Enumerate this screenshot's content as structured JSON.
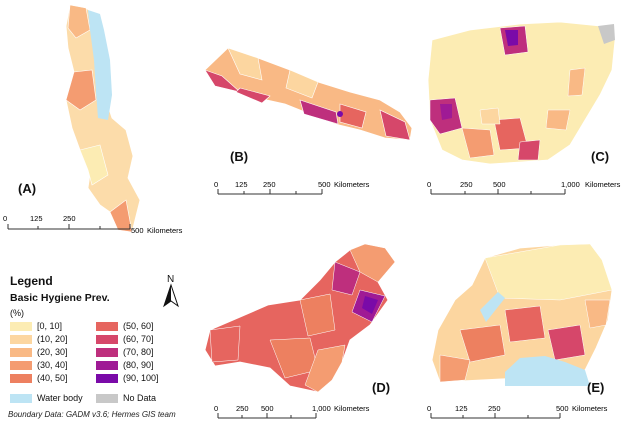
{
  "panels": [
    {
      "id": "A",
      "label": "(A)",
      "scale": {
        "ticks": [
          "0",
          "125",
          "250",
          "500"
        ],
        "unit": "Kilometers"
      }
    },
    {
      "id": "B",
      "label": "(B)",
      "scale": {
        "ticks": [
          "0",
          "125",
          "250",
          "500"
        ],
        "unit": "Kilometers"
      }
    },
    {
      "id": "C",
      "label": "(C)",
      "scale": {
        "ticks": [
          "0",
          "250",
          "500",
          "1,000"
        ],
        "unit": "Kilometers"
      }
    },
    {
      "id": "D",
      "label": "(D)",
      "scale": {
        "ticks": [
          "0",
          "250",
          "500",
          "1,000"
        ],
        "unit": "Kilometers"
      }
    },
    {
      "id": "E",
      "label": "(E)",
      "scale": {
        "ticks": [
          "0",
          "125",
          "250",
          "500"
        ],
        "unit": "Kilometers"
      }
    }
  ],
  "legend": {
    "title": "Legend",
    "subtitle": "Basic Hygiene Prev.",
    "unit": "(%)",
    "classes": [
      {
        "label": "[0, 10]",
        "color": "#fcecb3"
      },
      {
        "label": "(10, 20]",
        "color": "#fcd6a0"
      },
      {
        "label": "(20, 30]",
        "color": "#f9b985"
      },
      {
        "label": "(30, 40]",
        "color": "#f49c71"
      },
      {
        "label": "(40, 50]",
        "color": "#ed8060"
      },
      {
        "label": "(50, 60]",
        "color": "#e6655f"
      },
      {
        "label": "(60, 70]",
        "color": "#d6476a"
      },
      {
        "label": "(70, 80]",
        "color": "#be2f7d"
      },
      {
        "label": "(80, 90]",
        "color": "#9f1a95"
      },
      {
        "label": "(90, 100]",
        "color": "#7a0aa8"
      }
    ],
    "extras": [
      {
        "label": "Water body",
        "color": "#bde4f4"
      },
      {
        "label": "No Data",
        "color": "#c8c8c8"
      }
    ]
  },
  "north_arrow": "N",
  "credit": "Boundary Data: GADM v3.6; Hermes GIS team"
}
